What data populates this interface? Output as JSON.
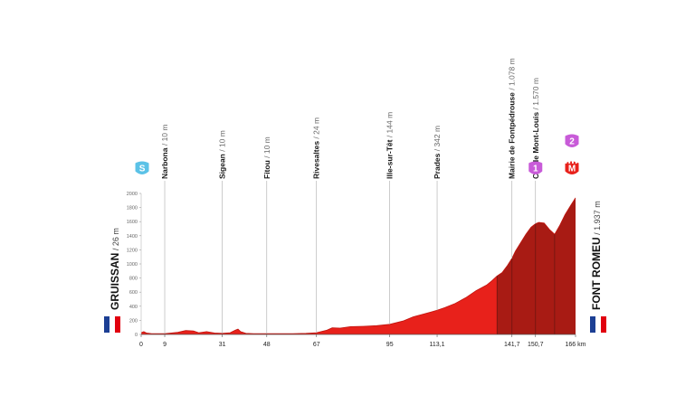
{
  "chart_data": {
    "type": "area",
    "title": "",
    "xlabel": "",
    "ylabel": "",
    "x_unit": "km",
    "xlim": [
      0,
      166
    ],
    "ylim": [
      0,
      2000
    ],
    "y_ticks": [
      0,
      200,
      400,
      600,
      800,
      1000,
      1200,
      1400,
      1600,
      1800,
      2000
    ],
    "x_ticks": [
      {
        "value": 0,
        "label": "0"
      },
      {
        "value": 9,
        "label": "9"
      },
      {
        "value": 31,
        "label": "31"
      },
      {
        "value": 48,
        "label": "48"
      },
      {
        "value": 67,
        "label": "67"
      },
      {
        "value": 95,
        "label": "95"
      },
      {
        "value": 113.1,
        "label": "113,1"
      },
      {
        "value": 141.7,
        "label": "141,7"
      },
      {
        "value": 150.7,
        "label": "150,7"
      },
      {
        "value": 166,
        "label": "166 km"
      }
    ],
    "start": {
      "name": "GRUISSAN",
      "altitude": "26 m",
      "flag": "France"
    },
    "finish": {
      "name": "FONT ROMEU",
      "altitude": "1.937 m",
      "flag": "France"
    },
    "waypoints": [
      {
        "name": "Narbona",
        "altitude": "10 m",
        "km": 9
      },
      {
        "name": "Sigean",
        "altitude": "10 m",
        "km": 31
      },
      {
        "name": "Fitou",
        "altitude": "10 m",
        "km": 48
      },
      {
        "name": "Rivesaltes",
        "altitude": "24 m",
        "km": 67
      },
      {
        "name": "Ille-sur-Têt",
        "altitude": "144 m",
        "km": 95
      },
      {
        "name": "Prades",
        "altitude": "342 m",
        "km": 113.1
      },
      {
        "name": "Mairie de Fontpédrouse",
        "altitude": "1.078 m",
        "km": 141.7
      },
      {
        "name": "Col de Mont-Louis",
        "altitude": "1.570 m",
        "km": 150.7
      }
    ],
    "markers": [
      {
        "type": "sprint",
        "label": "S",
        "km": 9,
        "color": "#5bc2e7"
      },
      {
        "type": "climb",
        "label": "1",
        "km": 150.7,
        "color": "#c85bd8"
      },
      {
        "type": "climb",
        "label": "2",
        "km": 166,
        "color": "#c85bd8"
      },
      {
        "type": "finish",
        "label": "M",
        "km": 166,
        "color": "#e8211b"
      }
    ],
    "profile": {
      "x": [
        0,
        1,
        2,
        4,
        9,
        14,
        17,
        20,
        22,
        25,
        28,
        31,
        34,
        36,
        37,
        38,
        40,
        43,
        48,
        52,
        58,
        63,
        67,
        71,
        73,
        76,
        80,
        85,
        90,
        95,
        100,
        104,
        108,
        111,
        113.1,
        116,
        120,
        124,
        128,
        132,
        134,
        136,
        138,
        140,
        141.7,
        143,
        145,
        147,
        149,
        150.7,
        152,
        154,
        156,
        158,
        160,
        162,
        164,
        166
      ],
      "y": [
        26,
        40,
        20,
        12,
        10,
        30,
        55,
        50,
        25,
        40,
        20,
        15,
        25,
        60,
        75,
        40,
        15,
        12,
        10,
        10,
        12,
        15,
        24,
        60,
        95,
        90,
        110,
        115,
        125,
        144,
        190,
        250,
        290,
        320,
        342,
        380,
        440,
        520,
        620,
        700,
        760,
        830,
        880,
        980,
        1078,
        1180,
        1300,
        1420,
        1520,
        1570,
        1590,
        1580,
        1490,
        1420,
        1550,
        1700,
        1820,
        1937
      ]
    },
    "series": [
      {
        "values_from": "profile",
        "color": "#e8211b",
        "range": [
          0,
          136
        ]
      },
      {
        "values_from": "profile",
        "color": "#a81b14",
        "range": [
          136,
          166
        ]
      }
    ],
    "grid": false,
    "legend": "none"
  }
}
